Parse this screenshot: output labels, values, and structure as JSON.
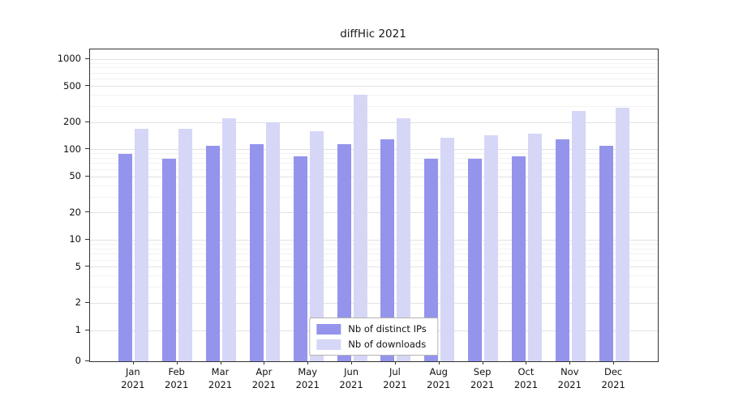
{
  "chart_data": {
    "type": "bar",
    "title": "diffHic 2021",
    "categories": [
      "Jan",
      "Feb",
      "Mar",
      "Apr",
      "May",
      "Jun",
      "Jul",
      "Aug",
      "Sep",
      "Oct",
      "Nov",
      "Dec"
    ],
    "year": "2021",
    "series": [
      {
        "name": "Nb of distinct IPs",
        "color": "#9494ec",
        "values": [
          90,
          80,
          110,
          115,
          85,
          115,
          130,
          80,
          80,
          85,
          130,
          110
        ]
      },
      {
        "name": "Nb of downloads",
        "color": "#d6d6f7",
        "values": [
          170,
          170,
          220,
          200,
          160,
          400,
          220,
          135,
          145,
          150,
          270,
          290
        ]
      }
    ],
    "yticks": [
      0,
      1,
      2,
      5,
      10,
      20,
      50,
      100,
      200,
      500,
      1000
    ],
    "yscale": "log",
    "ylim": [
      0,
      1000
    ],
    "grid": true,
    "legend_position": "inside-bottom-center"
  }
}
